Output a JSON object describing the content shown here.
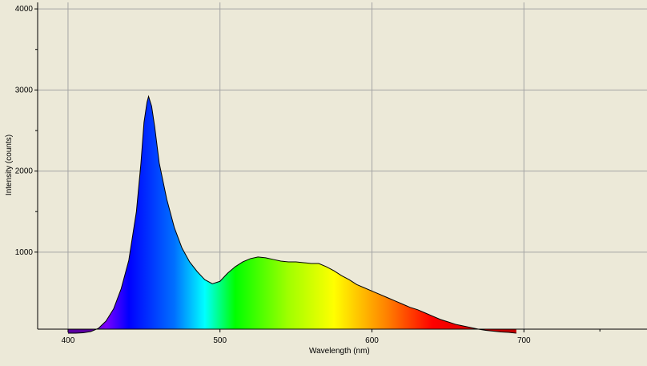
{
  "chart_data": {
    "type": "area",
    "x_label": "Wavelength (nm)",
    "y_label": "Intensity (counts)",
    "x": [
      400,
      405,
      410,
      415,
      420,
      425,
      430,
      435,
      440,
      445,
      448,
      450,
      452,
      453,
      455,
      457,
      460,
      465,
      470,
      475,
      480,
      485,
      490,
      495,
      500,
      505,
      510,
      515,
      520,
      525,
      530,
      535,
      540,
      545,
      550,
      555,
      560,
      565,
      570,
      575,
      580,
      585,
      590,
      595,
      600,
      605,
      610,
      615,
      620,
      625,
      630,
      635,
      640,
      645,
      650,
      655,
      660,
      665,
      670,
      675,
      680,
      685,
      690,
      695
    ],
    "values": [
      0,
      0,
      5,
      20,
      60,
      150,
      300,
      550,
      900,
      1500,
      2100,
      2600,
      2850,
      2920,
      2800,
      2550,
      2100,
      1650,
      1300,
      1050,
      880,
      760,
      660,
      610,
      640,
      740,
      820,
      880,
      920,
      940,
      930,
      910,
      890,
      880,
      880,
      870,
      860,
      860,
      820,
      770,
      710,
      660,
      600,
      560,
      520,
      480,
      440,
      400,
      360,
      320,
      290,
      250,
      210,
      170,
      140,
      110,
      90,
      70,
      50,
      35,
      25,
      15,
      10,
      0
    ],
    "line_color": "#000000",
    "xlim": [
      380,
      781
    ],
    "ylim": [
      50,
      4080
    ],
    "xticks": [
      400,
      500,
      600,
      700
    ],
    "minor_xticks": [
      750
    ],
    "yticks": [
      1000,
      2000,
      3000,
      4000
    ],
    "minor_yticks": [
      1500,
      2500,
      3500
    ],
    "grid": true
  }
}
